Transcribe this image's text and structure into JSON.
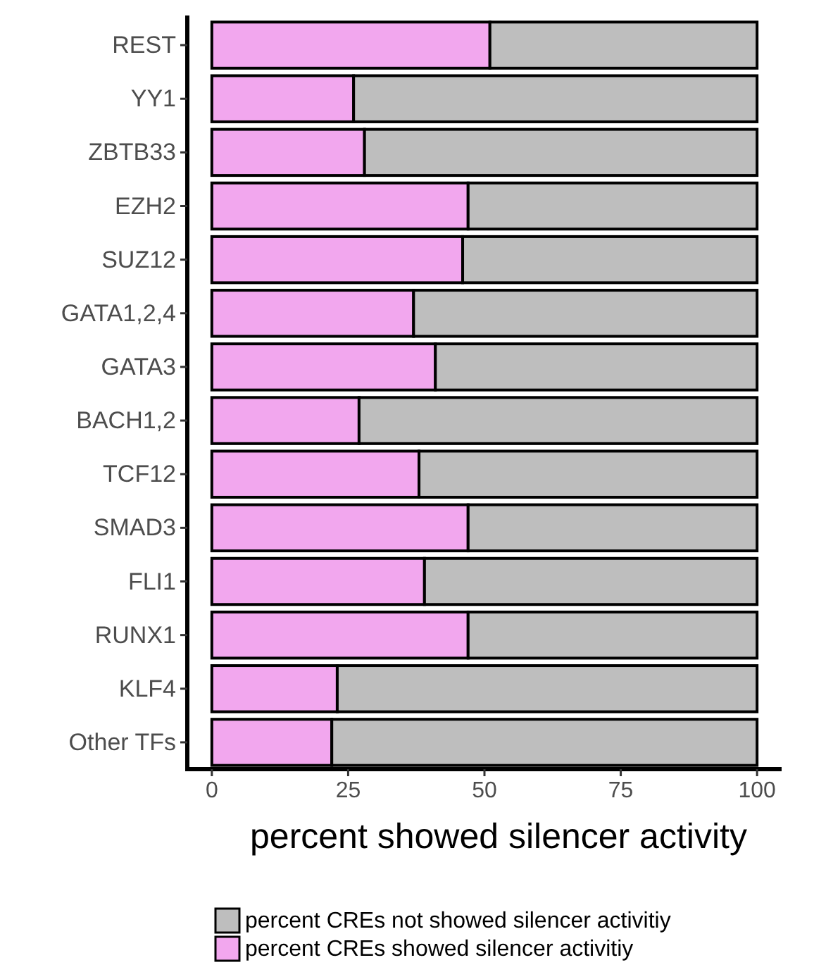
{
  "chart_data": {
    "type": "bar",
    "orientation": "horizontal",
    "stacked": true,
    "xlabel": "percent showed silencer activity",
    "categories": [
      "REST",
      "YY1",
      "ZBTB33",
      "EZH2",
      "SUZ12",
      "GATA1,2,4",
      "GATA3",
      "BACH1,2",
      "TCF12",
      "SMAD3",
      "FLI1",
      "RUNX1",
      "KLF4",
      "Other TFs"
    ],
    "series": [
      {
        "name": "percent CREs showed silencer activitiy",
        "color": "#f2a7ee",
        "values": [
          51,
          26,
          28,
          47,
          46,
          37,
          41,
          27,
          38,
          47,
          39,
          47,
          23,
          22
        ]
      },
      {
        "name": "percent CREs not showed silencer activitiy",
        "color": "#bebebe",
        "values": [
          49,
          74,
          72,
          53,
          54,
          63,
          59,
          73,
          62,
          53,
          61,
          53,
          77,
          78
        ]
      }
    ],
    "xlim": [
      -4.5,
      104.5
    ],
    "xticks": [
      0,
      25,
      50,
      75,
      100
    ],
    "grid": false,
    "legend": "bottom"
  }
}
